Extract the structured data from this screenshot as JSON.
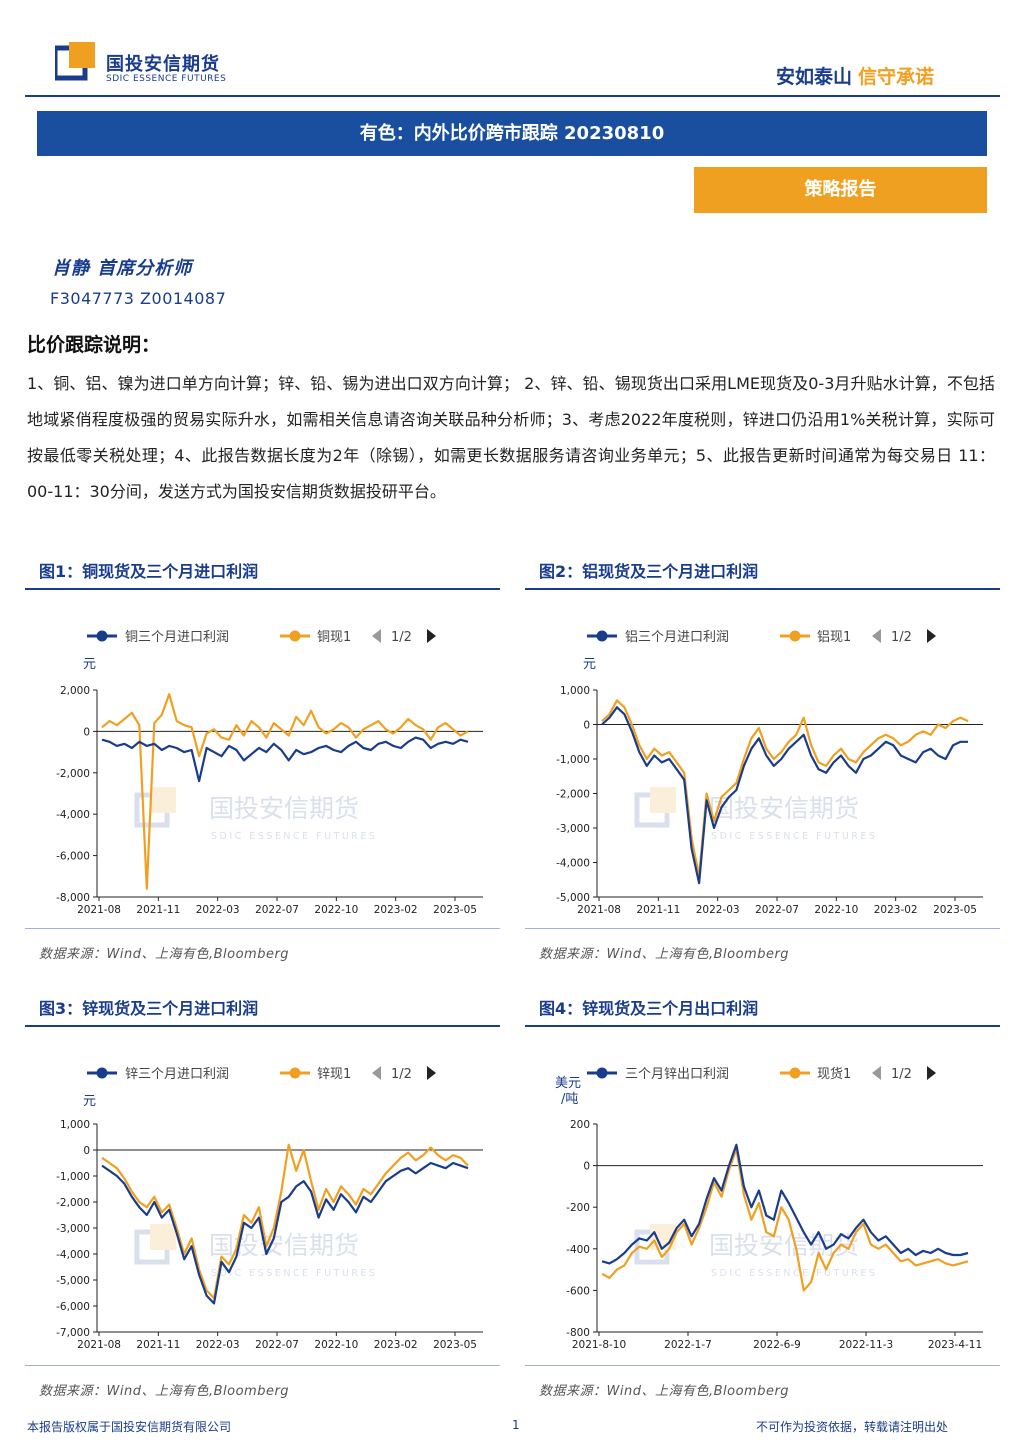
{
  "header": {
    "company_cn": "国投安信期货",
    "company_en": "SDIC ESSENCE FUTURES",
    "slogan_a": "安如泰山",
    "slogan_b": "信守承诺",
    "title": "有色：内外比价跨市跟踪 20230810",
    "report_type": "策略报告"
  },
  "analyst": {
    "name_title": "肖静  首席分析师",
    "cert": "F3047773  Z0014087"
  },
  "notes": {
    "heading": "比价跟踪说明：",
    "body": "1、铜、铝、镍为进口单方向计算；锌、铅、锡为进出口双方向计算；  2、锌、铅、锡现货出口采用LME现货及0-3月升贴水计算，不包括地域紧俏程度极强的贸易实际升水，如需相关信息请咨询关联品种分析师；3、考虑2022年度税则，锌进口仍沿用1%关税计算，实际可按最低零关税处理；4、此报告数据长度为2年（除锡），如需更长数据服务请咨询业务单元；5、此报告更新时间通常为每交易日 11：00-11：30分间，发送方式为国投安信期货数据投研平台。"
  },
  "colors": {
    "series1": "#1a3c8c",
    "series2": "#f0a020",
    "brand": "#1a3c8c"
  },
  "watermark": {
    "cn": "国投安信期货",
    "en": "SDIC ESSENCE FUTURES"
  },
  "legend_pager": "1/2",
  "chart_data": [
    {
      "type": "line",
      "panel_title": "图1：铜现货及三个月进口利润",
      "unit": "元",
      "legend": [
        "铜三个月进口利润",
        "铜现1"
      ],
      "ylim": [
        -8000,
        2000
      ],
      "yticks": [
        2000,
        0,
        -2000,
        -4000,
        -6000,
        -8000
      ],
      "ytick_labels": [
        "2,000",
        "0",
        "-2,000",
        "-4,000",
        "-6,000",
        "-8,000"
      ],
      "x_labels": [
        "2021-08",
        "2021-11",
        "2022-03",
        "2022-07",
        "2022-10",
        "2023-02",
        "2023-05"
      ],
      "source": "数据来源：Wind、上海有色,Bloomberg",
      "series": [
        {
          "values": [
            -400,
            -500,
            -700,
            -600,
            -800,
            -500,
            -700,
            -600,
            -900,
            -700,
            -800,
            -1000,
            -900,
            -2400,
            -800,
            -1000,
            -1200,
            -700,
            -900,
            -1400,
            -1100,
            -800,
            -1000,
            -600,
            -900,
            -1400,
            -900,
            -1100,
            -1000,
            -800,
            -700,
            -900,
            -1000,
            -700,
            -500,
            -800,
            -900,
            -600,
            -500,
            -700,
            -800,
            -500,
            -300,
            -400,
            -800,
            -600,
            -500,
            -600,
            -400,
            -500
          ]
        },
        {
          "values": [
            200,
            500,
            300,
            600,
            900,
            300,
            -7600,
            400,
            800,
            1800,
            500,
            300,
            200,
            -1200,
            -100,
            100,
            -300,
            -400,
            300,
            -200,
            500,
            200,
            -300,
            400,
            100,
            -200,
            700,
            300,
            1000,
            200,
            -100,
            100,
            400,
            200,
            -300,
            100,
            300,
            500,
            100,
            -100,
            200,
            600,
            300,
            100,
            -400,
            200,
            400,
            100,
            -200,
            0
          ]
        }
      ]
    },
    {
      "type": "line",
      "panel_title": "图2：铝现货及三个月进口利润",
      "unit": "元",
      "legend": [
        "铝三个月进口利润",
        "铝现1"
      ],
      "ylim": [
        -5000,
        1000
      ],
      "yticks": [
        1000,
        0,
        -1000,
        -2000,
        -3000,
        -4000,
        -5000
      ],
      "ytick_labels": [
        "1,000",
        "0",
        "-1,000",
        "-2,000",
        "-3,000",
        "-4,000",
        "-5,000"
      ],
      "x_labels": [
        "2021-08",
        "2021-11",
        "2022-03",
        "2022-07",
        "2022-10",
        "2023-02",
        "2023-05"
      ],
      "source": "数据来源：Wind、上海有色,Bloomberg",
      "series": [
        {
          "values": [
            0,
            200,
            500,
            300,
            -200,
            -800,
            -1200,
            -900,
            -1100,
            -1000,
            -1300,
            -1600,
            -3600,
            -4600,
            -2200,
            -3000,
            -2400,
            -2100,
            -1900,
            -1200,
            -700,
            -400,
            -900,
            -1200,
            -1000,
            -700,
            -500,
            -300,
            -900,
            -1300,
            -1400,
            -1100,
            -900,
            -1200,
            -1400,
            -1000,
            -900,
            -700,
            -500,
            -600,
            -900,
            -1000,
            -1100,
            -800,
            -700,
            -900,
            -1000,
            -600,
            -500,
            -500
          ]
        },
        {
          "values": [
            100,
            300,
            700,
            500,
            0,
            -600,
            -1000,
            -700,
            -900,
            -800,
            -1100,
            -1400,
            -3300,
            -4400,
            -2000,
            -2800,
            -2100,
            -1900,
            -1700,
            -1000,
            -400,
            -100,
            -700,
            -1000,
            -800,
            -500,
            -300,
            200,
            -600,
            -1100,
            -1200,
            -900,
            -700,
            -1000,
            -1100,
            -800,
            -600,
            -400,
            -300,
            -400,
            -600,
            -500,
            -300,
            -200,
            -300,
            0,
            -100,
            100,
            200,
            100
          ]
        }
      ]
    },
    {
      "type": "line",
      "panel_title": "图3：锌现货及三个月进口利润",
      "unit": "元",
      "legend": [
        "锌三个月进口利润",
        "锌现1"
      ],
      "ylim": [
        -7000,
        1000
      ],
      "yticks": [
        1000,
        0,
        -1000,
        -2000,
        -3000,
        -4000,
        -5000,
        -6000,
        -7000
      ],
      "ytick_labels": [
        "1,000",
        "0",
        "-1,000",
        "-2,000",
        "-3,000",
        "-4,000",
        "-5,000",
        "-6,000",
        "-7,000"
      ],
      "x_labels": [
        "2021-08",
        "2021-11",
        "2022-03",
        "2022-07",
        "2022-10",
        "2023-02",
        "2023-05"
      ],
      "source": "数据来源：Wind、上海有色,Bloomberg",
      "series": [
        {
          "values": [
            -600,
            -800,
            -1000,
            -1300,
            -1800,
            -2200,
            -2500,
            -2000,
            -2600,
            -2300,
            -3200,
            -4200,
            -3700,
            -4800,
            -5600,
            -5900,
            -4300,
            -4700,
            -4100,
            -2800,
            -3000,
            -2600,
            -4000,
            -3400,
            -2000,
            -1800,
            -1400,
            -1200,
            -1600,
            -2600,
            -1900,
            -2300,
            -1700,
            -2000,
            -2400,
            -1800,
            -2000,
            -1600,
            -1200,
            -1000,
            -800,
            -700,
            -900,
            -700,
            -500,
            -600,
            -700,
            -500,
            -600,
            -700
          ]
        },
        {
          "values": [
            -300,
            -500,
            -700,
            -1100,
            -1600,
            -2000,
            -2200,
            -1800,
            -2400,
            -2100,
            -3000,
            -4000,
            -3400,
            -4600,
            -5400,
            -5700,
            -4100,
            -4400,
            -3800,
            -2500,
            -2800,
            -2200,
            -3700,
            -3000,
            -1600,
            200,
            -800,
            0,
            -1200,
            -2300,
            -1500,
            -2000,
            -1400,
            -1700,
            -2100,
            -1500,
            -1700,
            -1300,
            -900,
            -600,
            -300,
            -100,
            -400,
            -200,
            100,
            -200,
            -400,
            -200,
            -300,
            -600
          ]
        }
      ]
    },
    {
      "type": "line",
      "panel_title": "图4：锌现货及三个月出口利润",
      "unit": "美元/吨",
      "legend": [
        "三个月锌出口利润",
        "现货1"
      ],
      "ylim": [
        -800,
        200
      ],
      "yticks": [
        200,
        0,
        -200,
        -400,
        -600,
        -800
      ],
      "ytick_labels": [
        "200",
        "0",
        "-200",
        "-400",
        "-600",
        "-800"
      ],
      "x_labels": [
        "2021-8-10",
        "2022-1-7",
        "2022-6-9",
        "2022-11-3",
        "2023-4-11"
      ],
      "source": "数据来源：Wind、上海有色,Bloomberg",
      "series": [
        {
          "values": [
            -460,
            -470,
            -450,
            -420,
            -380,
            -350,
            -360,
            -320,
            -400,
            -370,
            -300,
            -260,
            -340,
            -280,
            -160,
            -60,
            -120,
            0,
            100,
            -100,
            -200,
            -120,
            -240,
            -260,
            -120,
            -180,
            -250,
            -320,
            -380,
            -320,
            -400,
            -380,
            -330,
            -350,
            -300,
            -260,
            -320,
            -360,
            -340,
            -380,
            -420,
            -400,
            -430,
            -410,
            -420,
            -400,
            -420,
            -430,
            -430,
            -420
          ]
        },
        {
          "values": [
            -520,
            -540,
            -500,
            -480,
            -420,
            -390,
            -400,
            -360,
            -440,
            -400,
            -320,
            -280,
            -380,
            -300,
            -200,
            -80,
            -150,
            -20,
            80,
            -140,
            -260,
            -180,
            -320,
            -340,
            -200,
            -260,
            -400,
            -600,
            -560,
            -420,
            -500,
            -420,
            -380,
            -400,
            -320,
            -280,
            -380,
            -400,
            -380,
            -420,
            -460,
            -450,
            -480,
            -470,
            -460,
            -450,
            -470,
            -480,
            -470,
            -460
          ]
        }
      ]
    }
  ],
  "footer": {
    "left": "本报告版权属于国投安信期货有限公司",
    "page": "1",
    "right": "不可作为投资依据，转载请注明出处"
  }
}
